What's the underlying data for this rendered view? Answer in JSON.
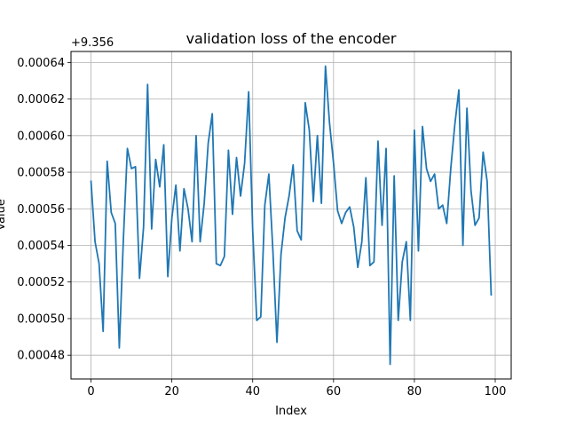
{
  "chart_data": {
    "type": "line",
    "title": "validation loss of the encoder",
    "xlabel": "Index",
    "ylabel": "Value",
    "y_offset_label": "+9.356",
    "xlim": [
      -4.95,
      103.95
    ],
    "ylim": [
      0.000467,
      0.000646
    ],
    "grid": true,
    "line_color": "#1f77b4",
    "x_ticks": [
      0,
      20,
      40,
      60,
      80,
      100
    ],
    "x_tick_labels": [
      "0",
      "20",
      "40",
      "60",
      "80",
      "100"
    ],
    "y_ticks": [
      0.00048,
      0.0005,
      0.00052,
      0.00054,
      0.00056,
      0.00058,
      0.0006,
      0.00062,
      0.00064
    ],
    "y_tick_labels": [
      "0.00048",
      "0.00050",
      "0.00052",
      "0.00054",
      "0.00056",
      "0.00058",
      "0.00060",
      "0.00062",
      "0.00064"
    ],
    "series": [
      {
        "values": [
          0.000575,
          0.000542,
          0.00053,
          0.000493,
          0.000586,
          0.000558,
          0.000552,
          0.000484,
          0.000543,
          0.000593,
          0.000582,
          0.000583,
          0.000522,
          0.00055,
          0.000628,
          0.000549,
          0.000587,
          0.000572,
          0.000595,
          0.000523,
          0.000555,
          0.000573,
          0.000537,
          0.000571,
          0.00056,
          0.000542,
          0.0006,
          0.000542,
          0.000563,
          0.000596,
          0.000612,
          0.00053,
          0.000529,
          0.000534,
          0.000592,
          0.000557,
          0.000588,
          0.000567,
          0.000585,
          0.000624,
          0.000548,
          0.000499,
          0.000501,
          0.000562,
          0.000579,
          0.000537,
          0.000487,
          0.000535,
          0.000555,
          0.000567,
          0.000584,
          0.000548,
          0.000543,
          0.000618,
          0.000603,
          0.000564,
          0.0006,
          0.000563,
          0.000638,
          0.000607,
          0.000585,
          0.000559,
          0.000552,
          0.000558,
          0.000561,
          0.00055,
          0.000528,
          0.000542,
          0.000577,
          0.000529,
          0.000531,
          0.000597,
          0.000551,
          0.000593,
          0.000475,
          0.000578,
          0.000499,
          0.000531,
          0.000542,
          0.000499,
          0.000603,
          0.000537,
          0.000605,
          0.000582,
          0.000575,
          0.000579,
          0.00056,
          0.000562,
          0.000552,
          0.000582,
          0.000606,
          0.000625,
          0.00054,
          0.000615,
          0.00057,
          0.000551,
          0.000555,
          0.000591,
          0.000575,
          0.000513
        ]
      }
    ]
  }
}
